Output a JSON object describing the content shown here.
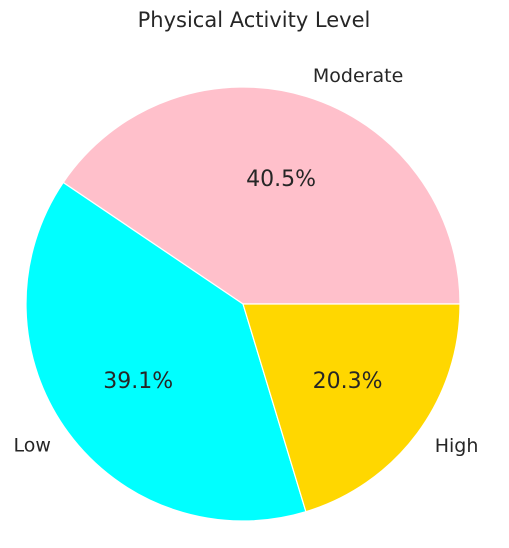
{
  "chart_data": {
    "type": "pie",
    "title": "Physical Activity Level",
    "categories": [
      "Moderate",
      "Low",
      "High"
    ],
    "values": [
      40.5,
      39.1,
      20.3
    ],
    "value_labels": [
      "40.5%",
      "39.1%",
      "20.3%"
    ],
    "colors": [
      "#ffc0cb",
      "#00ffff",
      "#ffd700"
    ],
    "start_angle_deg": 0,
    "direction": "counterclockwise",
    "legend": "none"
  }
}
